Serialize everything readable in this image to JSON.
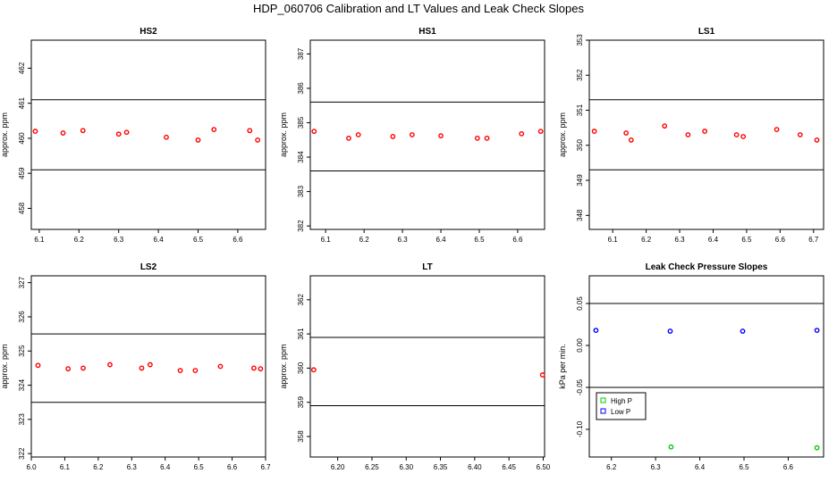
{
  "page": {
    "title": "HDP_060706 Calibration and LT Values and Leak Check Slopes"
  },
  "chart_data": [
    {
      "type": "scatter",
      "title": "HS2",
      "ylabel": "approx. ppm",
      "xlim": [
        0.08,
        0.67
      ],
      "ylim": [
        457.4,
        462.8
      ],
      "xticks": [
        0.1,
        0.2,
        0.3,
        0.4,
        0.5,
        0.6
      ],
      "xtick_labels": [
        "6.1",
        "6.2",
        "6.3",
        "6.4",
        "6.5",
        "6.6"
      ],
      "yticks": [
        458,
        459,
        460,
        461,
        462
      ],
      "ytick_labels": [
        "458",
        "459",
        "460",
        "461",
        "462"
      ],
      "hlines": [
        461.1,
        459.1
      ],
      "series": [
        {
          "color": "#ff0000",
          "points": [
            {
              "x": 0.09,
              "y": 460.2
            },
            {
              "x": 0.16,
              "y": 460.15
            },
            {
              "x": 0.21,
              "y": 460.22
            },
            {
              "x": 0.3,
              "y": 460.12
            },
            {
              "x": 0.32,
              "y": 460.17
            },
            {
              "x": 0.42,
              "y": 460.03
            },
            {
              "x": 0.5,
              "y": 459.95
            },
            {
              "x": 0.54,
              "y": 460.25
            },
            {
              "x": 0.63,
              "y": 460.22
            },
            {
              "x": 0.65,
              "y": 459.95
            }
          ]
        }
      ]
    },
    {
      "type": "scatter",
      "title": "HS1",
      "ylabel": "approx. ppm",
      "xlim": [
        0.06,
        0.67
      ],
      "ylim": [
        381.9,
        387.4
      ],
      "xticks": [
        0.1,
        0.2,
        0.3,
        0.4,
        0.5,
        0.6
      ],
      "xtick_labels": [
        "6.1",
        "6.2",
        "6.3",
        "6.4",
        "6.5",
        "6.6"
      ],
      "yticks": [
        382,
        383,
        384,
        385,
        386,
        387
      ],
      "ytick_labels": [
        "382",
        "383",
        "384",
        "385",
        "386",
        "387"
      ],
      "hlines": [
        385.6,
        383.6
      ],
      "series": [
        {
          "color": "#ff0000",
          "points": [
            {
              "x": 0.07,
              "y": 384.75
            },
            {
              "x": 0.16,
              "y": 384.55
            },
            {
              "x": 0.185,
              "y": 384.65
            },
            {
              "x": 0.275,
              "y": 384.6
            },
            {
              "x": 0.325,
              "y": 384.65
            },
            {
              "x": 0.4,
              "y": 384.62
            },
            {
              "x": 0.495,
              "y": 384.55
            },
            {
              "x": 0.52,
              "y": 384.55
            },
            {
              "x": 0.61,
              "y": 384.68
            },
            {
              "x": 0.66,
              "y": 384.75
            }
          ]
        }
      ]
    },
    {
      "type": "scatter",
      "title": "LS1",
      "ylabel": "approx. ppm",
      "xlim": [
        0.03,
        0.73
      ],
      "ylim": [
        347.6,
        353.0
      ],
      "xticks": [
        0.1,
        0.2,
        0.3,
        0.4,
        0.5,
        0.6,
        0.7
      ],
      "xtick_labels": [
        "6.1",
        "6.2",
        "6.3",
        "6.4",
        "6.5",
        "6.6",
        "6.7"
      ],
      "yticks": [
        348,
        349,
        350,
        351,
        352,
        353
      ],
      "ytick_labels": [
        "348",
        "349",
        "350",
        "351",
        "352",
        "353"
      ],
      "hlines": [
        351.3,
        349.3
      ],
      "series": [
        {
          "color": "#ff0000",
          "points": [
            {
              "x": 0.045,
              "y": 350.4
            },
            {
              "x": 0.14,
              "y": 350.35
            },
            {
              "x": 0.155,
              "y": 350.15
            },
            {
              "x": 0.255,
              "y": 350.55
            },
            {
              "x": 0.325,
              "y": 350.3
            },
            {
              "x": 0.375,
              "y": 350.4
            },
            {
              "x": 0.47,
              "y": 350.3
            },
            {
              "x": 0.49,
              "y": 350.25
            },
            {
              "x": 0.59,
              "y": 350.45
            },
            {
              "x": 0.66,
              "y": 350.3
            },
            {
              "x": 0.71,
              "y": 350.15
            }
          ]
        }
      ]
    },
    {
      "type": "scatter",
      "title": "LS2",
      "ylabel": "approx. ppm",
      "xlim": [
        0.0,
        0.7
      ],
      "ylim": [
        321.9,
        327.2
      ],
      "xticks": [
        0.0,
        0.1,
        0.2,
        0.3,
        0.4,
        0.5,
        0.6,
        0.7
      ],
      "xtick_labels": [
        "6.0",
        "6.1",
        "6.2",
        "6.3",
        "6.4",
        "6.5",
        "6.6",
        "6.7"
      ],
      "yticks": [
        322,
        323,
        324,
        325,
        326,
        327
      ],
      "ytick_labels": [
        "322",
        "323",
        "324",
        "325",
        "326",
        "327"
      ],
      "hlines": [
        325.5,
        323.5
      ],
      "series": [
        {
          "color": "#ff0000",
          "points": [
            {
              "x": 0.02,
              "y": 324.58
            },
            {
              "x": 0.11,
              "y": 324.48
            },
            {
              "x": 0.155,
              "y": 324.5
            },
            {
              "x": 0.235,
              "y": 324.6
            },
            {
              "x": 0.33,
              "y": 324.5
            },
            {
              "x": 0.355,
              "y": 324.6
            },
            {
              "x": 0.445,
              "y": 324.43
            },
            {
              "x": 0.49,
              "y": 324.43
            },
            {
              "x": 0.565,
              "y": 324.55
            },
            {
              "x": 0.665,
              "y": 324.5
            },
            {
              "x": 0.685,
              "y": 324.48
            }
          ]
        }
      ]
    },
    {
      "type": "scatter",
      "title": "LT",
      "ylabel": "approx. ppm",
      "xlim": [
        0.16,
        0.502
      ],
      "ylim": [
        357.4,
        362.7
      ],
      "xticks": [
        0.2,
        0.25,
        0.3,
        0.35,
        0.4,
        0.45,
        0.5
      ],
      "xtick_labels": [
        "6.20",
        "6.25",
        "6.30",
        "6.35",
        "6.40",
        "6.45",
        "6.50"
      ],
      "yticks": [
        358,
        359,
        360,
        361,
        362
      ],
      "ytick_labels": [
        "358",
        "359",
        "360",
        "361",
        "362"
      ],
      "hlines": [
        360.9,
        358.9
      ],
      "series": [
        {
          "color": "#ff0000",
          "points": [
            {
              "x": 0.165,
              "y": 359.95
            },
            {
              "x": 0.499,
              "y": 359.8
            }
          ]
        }
      ]
    },
    {
      "type": "scatter",
      "title": "Leak Check Pressure Slopes",
      "ylabel": "kPa per min.",
      "xlim": [
        0.15,
        0.68
      ],
      "ylim": [
        -0.133,
        0.083
      ],
      "xticks": [
        0.2,
        0.3,
        0.4,
        0.5,
        0.6
      ],
      "xtick_labels": [
        "6.2",
        "6.3",
        "6.4",
        "6.5",
        "6.6"
      ],
      "yticks": [
        -0.1,
        -0.05,
        0.0,
        0.05
      ],
      "ytick_labels": [
        "-0.10",
        "-0.05",
        "0.00",
        "0.05"
      ],
      "hlines": [
        0.05,
        -0.05
      ],
      "legend": {
        "placement": "lower-left",
        "entries": [
          {
            "label": "High P",
            "color": "#00cc00"
          },
          {
            "label": "Low P",
            "color": "#0000ff"
          }
        ]
      },
      "series": [
        {
          "name": "High P",
          "color": "#00cc00",
          "points": [
            {
              "x": 0.335,
              "y": -0.121
            },
            {
              "x": 0.665,
              "y": -0.122
            }
          ]
        },
        {
          "name": "Low P",
          "color": "#0000ff",
          "points": [
            {
              "x": 0.165,
              "y": 0.018
            },
            {
              "x": 0.333,
              "y": 0.017
            },
            {
              "x": 0.497,
              "y": 0.017
            },
            {
              "x": 0.665,
              "y": 0.018
            }
          ]
        }
      ]
    }
  ]
}
